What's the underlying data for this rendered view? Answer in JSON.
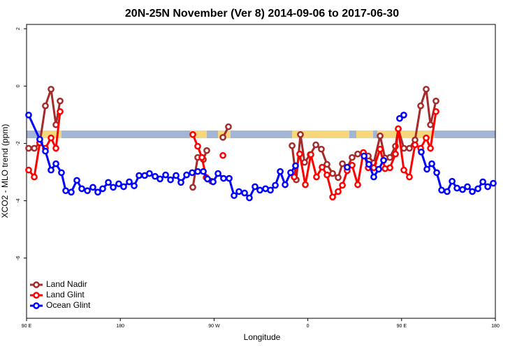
{
  "chart_data": {
    "type": "line",
    "title": "20N-25N November (Ver 8)   2014-09-06 to 2017-06-30",
    "x_label": "Longitude",
    "y_label": "XCO2 - MLO trend (ppm)",
    "xlim": [
      90,
      540
    ],
    "ylim": [
      -8.1,
      2.15
    ],
    "xticks": [
      {
        "value": 90,
        "label": "90 E"
      },
      {
        "value": 180,
        "label": "180"
      },
      {
        "value": 270,
        "label": "90 W"
      },
      {
        "value": 360,
        "label": "0"
      },
      {
        "value": 450,
        "label": "90 E"
      },
      {
        "value": 540,
        "label": "180"
      }
    ],
    "yticks": [
      2,
      0,
      -2,
      -4,
      -6
    ],
    "legend": "bottom-left",
    "series": [
      {
        "name": "Land Nadir",
        "color": "#a52a2a",
        "x": [
          92.0,
          97.4,
          102.7,
          108.1,
          113.5,
          118.2,
          122.2,
          null,
          249.6,
          254.3,
          259.7,
          263.0,
          null,
          278.5,
          283.8,
          null,
          344.9,
          348.9,
          352.9,
          356.9,
          362.3,
          367.7,
          373.0,
          378.4,
          383.8,
          389.1,
          393.2,
          397.8,
          402.5,
          407.9,
          413.3,
          418.0,
          423.3,
          429.4,
          434.1,
          438.8,
          444.1,
          446.8,
          452.2,
          457.5,
          462.9,
          468.3,
          473.6,
          477.7,
          483.0
        ],
        "values": [
          -2.17,
          -2.17,
          -1.98,
          -0.69,
          -0.11,
          -1.35,
          -0.52,
          null,
          -3.53,
          -2.49,
          -2.56,
          -2.25,
          null,
          -1.79,
          -1.42,
          null,
          -2.08,
          -3.27,
          -1.69,
          -2.66,
          -2.39,
          -2.05,
          -2.2,
          -2.73,
          -3.05,
          -3.19,
          -2.71,
          -2.85,
          -2.49,
          -2.37,
          -2.32,
          -2.44,
          -2.68,
          -1.74,
          -2.51,
          -2.49,
          -2.1,
          -1.49,
          -2.17,
          -2.17,
          -1.88,
          -0.69,
          -0.11,
          -1.35,
          -0.52
        ]
      },
      {
        "name": "Land Glint",
        "color": "#ff0000",
        "x": [
          92.0,
          97.4,
          102.7,
          108.1,
          113.5,
          118.2,
          122.2,
          null,
          249.6,
          254.3,
          258.3,
          262.4,
          267.7,
          null,
          278.5,
          null,
          346.9,
          352.2,
          357.6,
          362.9,
          368.3,
          373.7,
          378.4,
          383.8,
          389.1,
          393.2,
          397.8,
          402.5,
          407.9,
          413.3,
          418.0,
          423.3,
          429.4,
          434.1,
          438.8,
          444.1,
          446.8,
          452.2,
          457.5,
          462.9,
          468.3,
          473.6,
          477.7,
          483.0
        ],
        "values": [
          -2.93,
          -3.17,
          -1.98,
          -2.17,
          -1.81,
          -2.17,
          -0.89,
          null,
          -1.69,
          -2.1,
          -2.49,
          -3.19,
          -3.32,
          null,
          -2.42,
          null,
          -3.17,
          -2.37,
          -3.44,
          -2.39,
          -3.17,
          -2.83,
          -3.1,
          -3.87,
          -3.68,
          -3.46,
          -2.95,
          -2.76,
          -3.44,
          -2.32,
          -2.85,
          -2.85,
          -2.2,
          -2.88,
          -2.85,
          -2.37,
          -1.49,
          -2.93,
          -3.17,
          -2.05,
          -2.17,
          -1.81,
          -2.17,
          -0.89
        ]
      },
      {
        "name": "Ocean Glint",
        "color": "#0000ff",
        "x": [
          92.0,
          102.7,
          108.1,
          113.5,
          118.2,
          123.5,
          127.6,
          132.9,
          138.3,
          143.0,
          148.4,
          153.7,
          158.4,
          163.1,
          168.5,
          173.2,
          178.5,
          183.2,
          188.6,
          193.3,
          198.0,
          203.4,
          208.0,
          213.4,
          218.1,
          223.5,
          228.2,
          233.5,
          238.2,
          243.6,
          249.0,
          254.3,
          259.7,
          263.7,
          269.1,
          273.8,
          279.1,
          284.5,
          289.2,
          293.9,
          299.3,
          303.9,
          309.3,
          314.0,
          319.4,
          324.1,
          328.8,
          333.5,
          338.2,
          343.5,
          348.2,
          null,
          397.8,
          null,
          414.0,
          418.6,
          423.3,
          428.0,
          432.7,
          null,
          448.1,
          452.1,
          null,
          468.9,
          474.3,
          479.0,
          483.7,
          488.4,
          493.7,
          498.5,
          503.2,
          508.5,
          513.2,
          517.9,
          523.3,
          528.0,
          532.7,
          538.0
        ],
        "values": [
          -1.01,
          -1.86,
          -2.27,
          -2.93,
          -2.71,
          -3.02,
          -3.65,
          -3.7,
          -3.29,
          -3.58,
          -3.65,
          -3.53,
          -3.7,
          -3.58,
          -3.36,
          -3.53,
          -3.41,
          -3.51,
          -3.34,
          -3.48,
          -3.12,
          -3.12,
          -3.05,
          -3.15,
          -3.24,
          -3.1,
          -3.27,
          -3.12,
          -3.36,
          -3.1,
          -3.02,
          -2.98,
          -2.98,
          -3.24,
          -3.34,
          -3.05,
          -3.22,
          -3.22,
          -3.82,
          -3.68,
          -3.73,
          -3.9,
          -3.51,
          -3.63,
          -3.58,
          -3.63,
          -3.46,
          -2.98,
          -3.44,
          -3.02,
          -2.78,
          null,
          -2.83,
          null,
          -2.44,
          -2.73,
          -3.17,
          -2.9,
          -2.59,
          null,
          -1.13,
          -1.01,
          null,
          -2.3,
          -2.9,
          -2.71,
          -3.02,
          -3.63,
          -3.68,
          -3.32,
          -3.56,
          -3.61,
          -3.51,
          -3.68,
          -3.58,
          -3.34,
          -3.51,
          -3.39
        ]
      }
    ]
  }
}
